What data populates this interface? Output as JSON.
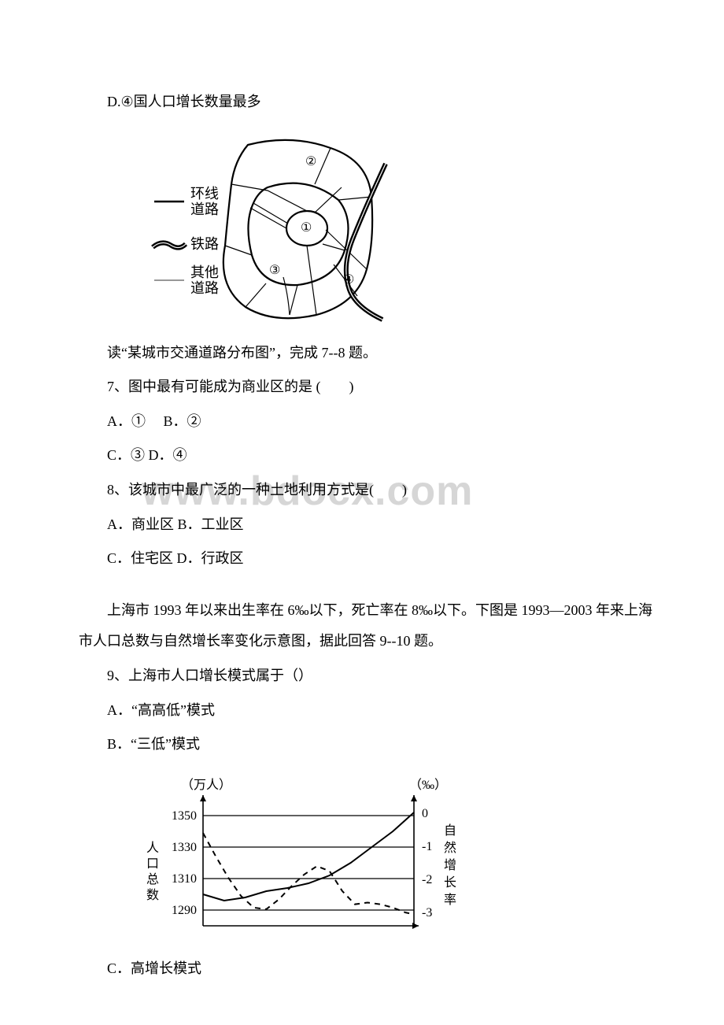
{
  "line_d": "D.④国人口增长数量最多",
  "diagram1": {
    "legend": {
      "ring_road_l1": "环线",
      "ring_road_l2": "道路",
      "railway": "铁路",
      "other_road_l1": "其他",
      "other_road_l2": "道路"
    },
    "labels": {
      "c1": "①",
      "c2": "②",
      "c3": "③",
      "c4": "④"
    },
    "colors": {
      "stroke": "#000000",
      "bg": "#ffffff",
      "legend_ring": "#000000",
      "legend_rail": "#000000",
      "legend_other": "#808080"
    },
    "line_widths": {
      "ring": 2.2,
      "other": 1.2,
      "rail": 5
    },
    "font_size_legend": 18,
    "font_size_label": 16
  },
  "caption1": "读“某城市交通道路分布图”，完成 7--8 题。",
  "q7": "7、图中最有可能成为商业区的是 (　　)",
  "q7_ab": "A．①  　B．②",
  "q7_cd": " C．③  D．④",
  "q8": "8、该城市中最广泛的一种土地利用方式是(　　)",
  "q8_ab": "A．商业区 B．工业区",
  "q8_cd": " C．住宅区  D．行政区",
  "watermark": "www.bdocx.com",
  "shanghai_intro": "上海市 1993 年以来出生率在 6‰以下，死亡率在 8‰以下。下图是 1993—2003 年来上海市人口总数与自然增长率变化示意图，据此回答 9--10 题。",
  "q9": "9、上海市人口增长模式属于（）",
  "q9_a": " A．“高高低”模式",
  "q9_b": "B．“三低”模式",
  "q9_c": " C．高增长模式",
  "diagram2": {
    "y_left_label": "（万人）",
    "y_right_label": "（‰）",
    "y_left_ticks": [
      "1350",
      "1330",
      "1310",
      "1290"
    ],
    "y_right_ticks": [
      "0",
      "-1",
      "-2",
      "-3"
    ],
    "left_axis_title_chars": [
      "人",
      "口",
      "总",
      "数"
    ],
    "right_axis_title_chars": [
      "自",
      "然",
      "增",
      "长",
      "率"
    ],
    "colors": {
      "axis": "#000000",
      "grid": "#000000",
      "pop_line": "#000000",
      "growth_line": "#000000",
      "bg": "#ffffff"
    },
    "line_widths": {
      "axis": 1.6,
      "grid": 1.2,
      "pop": 2.0,
      "growth": 2.0
    },
    "font_size_axis": 16,
    "font_size_title": 16,
    "pop_points": [
      [
        0,
        1300
      ],
      [
        1,
        1296
      ],
      [
        2,
        1298
      ],
      [
        3,
        1302
      ],
      [
        4,
        1304
      ],
      [
        5,
        1307
      ],
      [
        6,
        1312
      ],
      [
        7,
        1320
      ],
      [
        8,
        1330
      ],
      [
        9,
        1340
      ],
      [
        10,
        1352
      ]
    ],
    "growth_points": [
      [
        0,
        -0.6
      ],
      [
        0.6,
        -1.3
      ],
      [
        1.2,
        -1.95
      ],
      [
        1.8,
        -2.5
      ],
      [
        2.4,
        -2.85
      ],
      [
        3.0,
        -2.9
      ],
      [
        3.6,
        -2.6
      ],
      [
        4.2,
        -2.2
      ],
      [
        4.8,
        -1.85
      ],
      [
        5.4,
        -1.6
      ],
      [
        6.0,
        -1.75
      ],
      [
        6.6,
        -2.35
      ],
      [
        7.2,
        -2.75
      ],
      [
        7.8,
        -2.7
      ],
      [
        8.4,
        -2.75
      ],
      [
        9.0,
        -2.85
      ],
      [
        9.6,
        -3.0
      ],
      [
        10,
        -3.05
      ]
    ],
    "y_left_range": [
      1280,
      1360
    ],
    "y_right_range": [
      -3.4,
      0.4
    ],
    "x_range": [
      0,
      10
    ]
  }
}
